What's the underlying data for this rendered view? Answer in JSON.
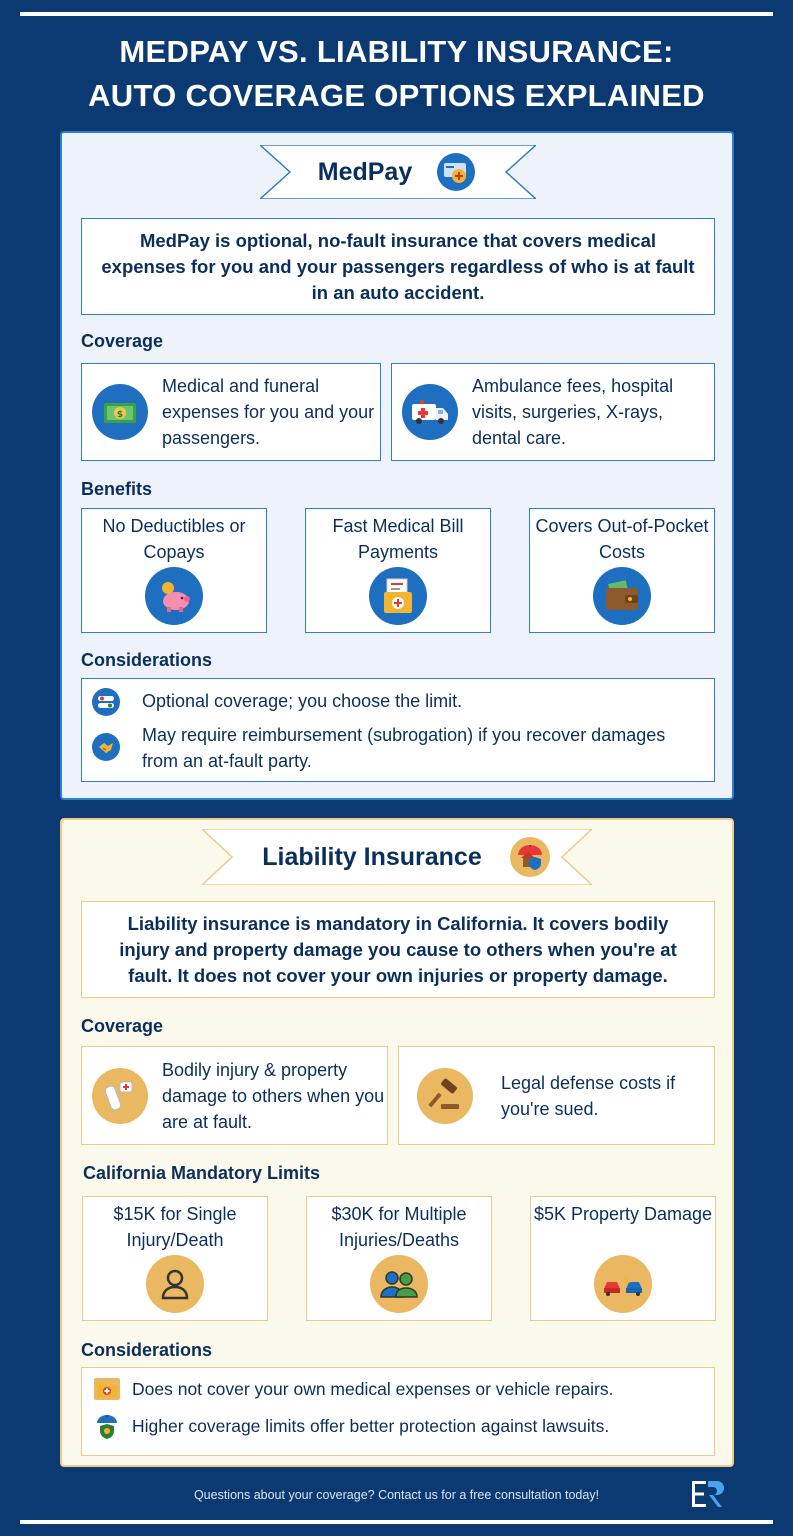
{
  "title": {
    "line1": "MEDPAY VS. LIABILITY INSURANCE:",
    "line2": "AUTO COVERAGE OPTIONS EXPLAINED"
  },
  "medpay": {
    "heading": "MedPay",
    "icon": "medical-card-icon",
    "intro": "MedPay is optional, no-fault insurance that covers medical expenses for you and your passengers regardless of who is at fault in an auto accident.",
    "coverage_heading": "Coverage",
    "coverage": [
      {
        "icon": "money-icon",
        "text": "Medical and funeral expenses for you and your passengers."
      },
      {
        "icon": "ambulance-icon",
        "text": "Ambulance fees, hospital visits, surgeries, X-rays, dental care."
      }
    ],
    "benefits_heading": "Benefits",
    "benefits": [
      {
        "icon": "piggy-bank-icon",
        "text": "No Deductibles or Copays"
      },
      {
        "icon": "medical-bill-icon",
        "text": "Fast Medical Bill Payments"
      },
      {
        "icon": "wallet-icon",
        "text": "Covers Out-of-Pocket Costs"
      }
    ],
    "considerations_heading": "Considerations",
    "considerations": [
      {
        "icon": "toggle-icon",
        "text": "Optional coverage; you choose the limit."
      },
      {
        "icon": "handshake-icon",
        "text": "May require reimbursement (subrogation) if you recover damages from an at-fault party."
      }
    ]
  },
  "liability": {
    "heading": "Liability Insurance",
    "icon": "umbrella-house-icon",
    "intro": "Liability insurance is mandatory in California. It covers bodily injury and property damage you cause to others when you're at fault. It does not cover your own injuries or property damage.",
    "coverage_heading": "Coverage",
    "coverage": [
      {
        "icon": "injured-arm-icon",
        "text": "Bodily injury & property damage to others when you are at fault."
      },
      {
        "icon": "gavel-icon",
        "text": "Legal defense costs if you're sued."
      }
    ],
    "limits_heading": "California Mandatory Limits",
    "limits": [
      {
        "icon": "person-icon",
        "text": "$15K for Single Injury/Death"
      },
      {
        "icon": "people-icon",
        "text": "$30K for Multiple Injuries/Deaths"
      },
      {
        "icon": "car-crash-icon",
        "text": "$5K Property Damage"
      }
    ],
    "considerations_heading": "Considerations",
    "considerations": [
      {
        "icon": "medical-folder-icon",
        "text": "Does not cover your own medical expenses or vehicle repairs."
      },
      {
        "icon": "shield-umbrella-icon",
        "text": "Higher coverage limits offer better protection against lawsuits."
      }
    ]
  },
  "footer": {
    "text": "Questions about your coverage? Contact us for a free consultation today!",
    "logo": "ER"
  },
  "colors": {
    "background": "#0b3a73",
    "medpay_panel": "#eef3fb",
    "medpay_border": "#2f80c9",
    "liability_panel": "#fbf8ec",
    "liability_border": "#f0c98a",
    "text": "#0b2f5c",
    "icon_blue": "#1f6fc0",
    "icon_gold": "#e9b860"
  }
}
